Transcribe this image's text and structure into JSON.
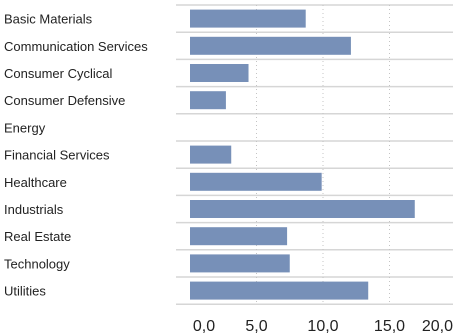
{
  "chart_data": {
    "type": "bar",
    "orientation": "horizontal",
    "title": "",
    "xlabel": "",
    "ylabel": "",
    "categories": [
      "Basic Materials",
      "Communication Services",
      "Consumer Cyclical",
      "Consumer Defensive",
      "Energy",
      "Financial Services",
      "Healthcare",
      "Industrials",
      "Real Estate",
      "Technology",
      "Utilities"
    ],
    "values": [
      8.7,
      12.1,
      4.4,
      2.7,
      0,
      3.1,
      9.9,
      16.9,
      7.3,
      7.5,
      13.4
    ],
    "xlim": [
      0,
      20
    ],
    "xticks": [
      "0,0",
      "5,0",
      "10,0",
      "15,0",
      "20,0"
    ],
    "grid": "vertical dotted",
    "legend": "none",
    "colors": {
      "bar": "#7790b8",
      "row_separator": "#d6d6d6",
      "grid": "#c4c4c4",
      "text": "#222222"
    }
  }
}
